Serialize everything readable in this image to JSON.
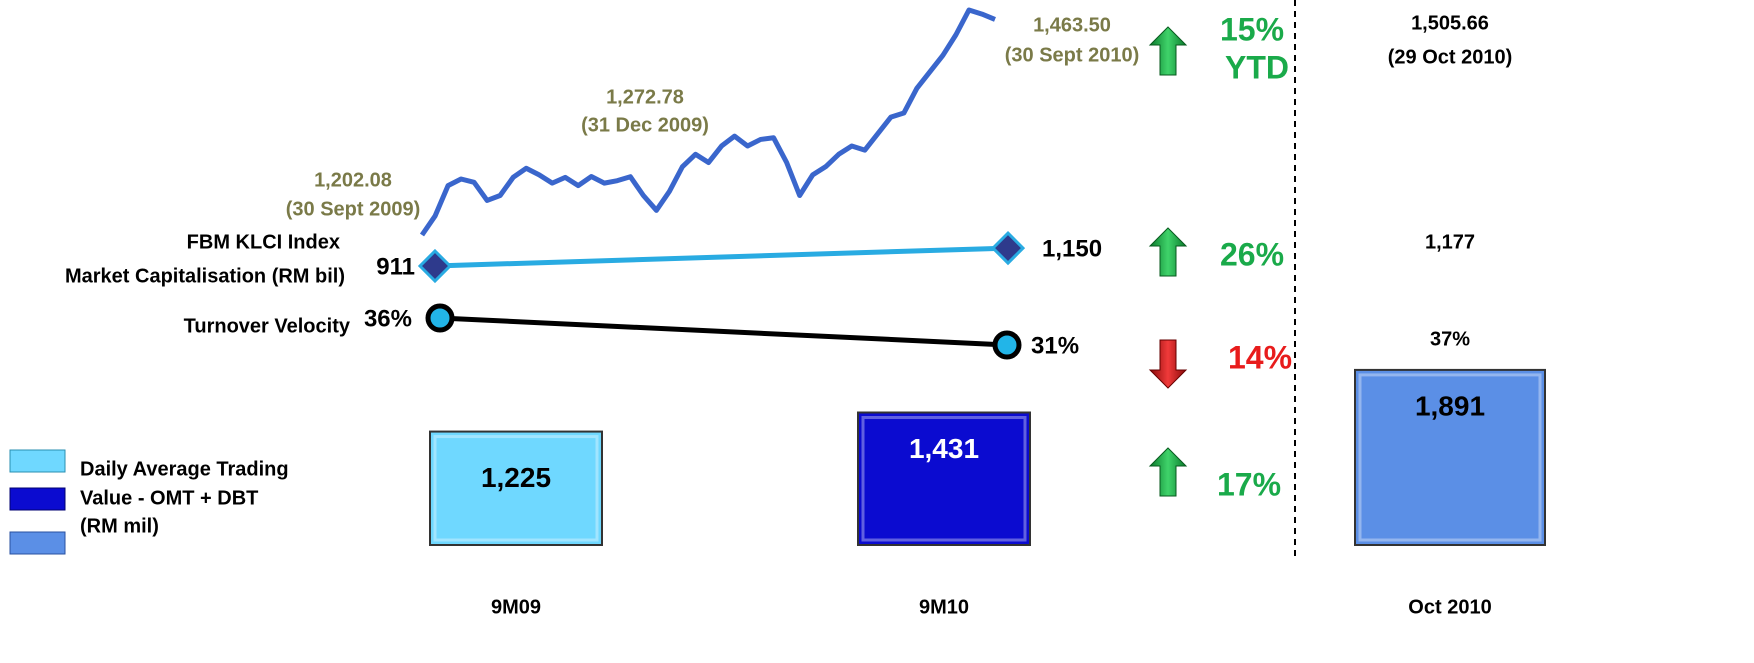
{
  "klci": {
    "label": "FBM KLCI Index",
    "color": "#3a66cc",
    "values": [
      1202.08,
      1225,
      1262,
      1270,
      1266,
      1244,
      1250,
      1272,
      1283,
      1275,
      1265,
      1272,
      1262,
      1273,
      1265,
      1268,
      1272.78,
      1250,
      1232,
      1255,
      1285,
      1300,
      1290,
      1310,
      1322,
      1310,
      1318,
      1320,
      1290,
      1250,
      1275,
      1285,
      1300,
      1310,
      1305,
      1325,
      1345,
      1350,
      1380,
      1400,
      1420,
      1445,
      1475,
      1470,
      1463.5
    ],
    "annotations": [
      {
        "value": "1,202.08",
        "date": "(30 Sept 2009)"
      },
      {
        "value": "1,272.78",
        "date": "(31 Dec 2009)"
      },
      {
        "value": "1,463.50",
        "date": "(30 Sept 2010)"
      }
    ]
  },
  "market_cap": {
    "label": "Market Capitalisation (RM bil)",
    "color": "#29abe2",
    "values": [
      911,
      1150
    ],
    "value_labels": [
      "911",
      "1,150"
    ]
  },
  "velocity": {
    "label": "Turnover Velocity",
    "color": "#000000",
    "values": [
      36,
      31
    ],
    "value_labels": [
      "36%",
      "31%"
    ]
  },
  "trading_value": {
    "legend": [
      "Daily Average Trading",
      "Value  - OMT + DBT",
      "(RM mil)"
    ],
    "categories": [
      "9M09",
      "9M10",
      "Oct 2010"
    ],
    "values": [
      1225,
      1431,
      1891
    ],
    "value_labels": [
      "1,225",
      "1,431",
      "1,891"
    ],
    "colors": [
      "#6fd8ff",
      "#0b0bd0",
      "#5b8fe6"
    ]
  },
  "changes": [
    {
      "text": "15%",
      "note": "YTD",
      "direction": "up"
    },
    {
      "text": "26%",
      "direction": "up"
    },
    {
      "text": "14%",
      "direction": "down"
    },
    {
      "text": "17%",
      "direction": "up"
    }
  ],
  "oct_2010": {
    "index": "1,505.66",
    "date": "(29 Oct 2010)",
    "market_cap": "1,177",
    "velocity": "37%"
  }
}
